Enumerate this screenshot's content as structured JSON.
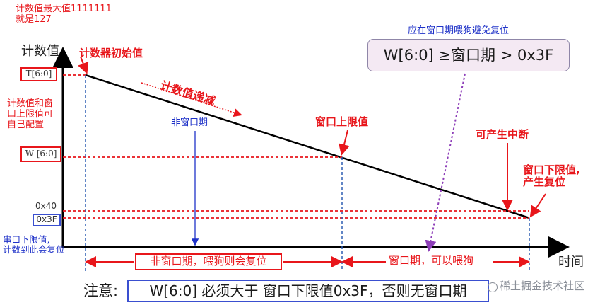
{
  "top_note": {
    "line1": "计数值最大值1111111",
    "line2": "就是127"
  },
  "y_axis": {
    "title": "计数值",
    "t_label": "T[6:0]",
    "w_label": "W [6:0]",
    "val_0x40": "0x40",
    "val_0x3f": "0x3F"
  },
  "side_notes": {
    "configurable": [
      "计数值和窗",
      "口上限值可",
      "自己配置"
    ],
    "reset": [
      "串口下限值,",
      "计数到此会复位"
    ]
  },
  "annotations": {
    "counter_initial": "计数器初始值",
    "counter_decrement": "计数值递减",
    "non_window": "非窗口期",
    "window_upper": "窗口上限值",
    "interrupt": "可产生中断",
    "window_lower": [
      "窗口下限值,",
      "产生复位"
    ]
  },
  "condition": {
    "caption": "应在窗口期喂狗避免复位",
    "text": "W[6:0] ≥窗口期 > 0x3F"
  },
  "x_axis": {
    "title": "时间"
  },
  "periods": {
    "non_window": "非窗口期，喂狗则会复位",
    "window": "窗口期，可以喂狗"
  },
  "footer": {
    "prefix": "注意:",
    "note": "W[6:0] 必须大于 窗口下限值0x3F，否则无窗口期"
  },
  "watermark": "稀土掘金技术社区",
  "colors": {
    "accent_red": "#e8161b",
    "accent_blue": "#1f32c8",
    "accent_purple": "#8e3fb9",
    "axis": "#000000"
  }
}
